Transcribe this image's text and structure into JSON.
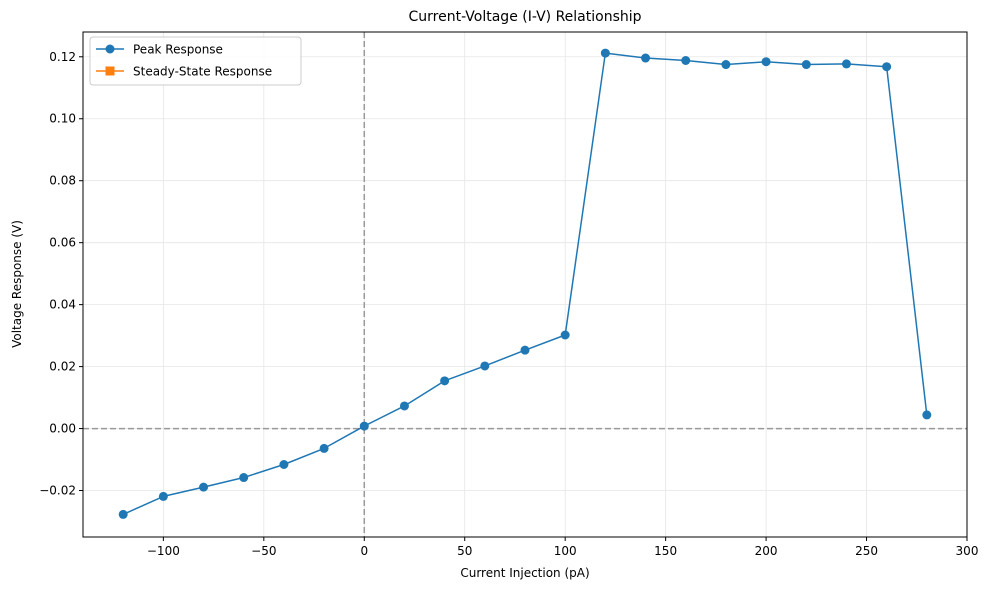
{
  "chart_data": {
    "type": "line",
    "title": "Current-Voltage (I-V) Relationship",
    "xlabel": "Current Injection (pA)",
    "ylabel": "Voltage Response (V)",
    "xlim": [
      -140,
      300
    ],
    "ylim": [
      -0.035,
      0.128
    ],
    "xticks": [
      -100,
      -50,
      0,
      50,
      100,
      150,
      200,
      250,
      300
    ],
    "xtick_labels": [
      "−100",
      "−50",
      "0",
      "50",
      "100",
      "150",
      "200",
      "250",
      "300"
    ],
    "yticks": [
      -0.02,
      0.0,
      0.02,
      0.04,
      0.06,
      0.08,
      0.1,
      0.12
    ],
    "ytick_labels": [
      "−0.02",
      "0.00",
      "0.02",
      "0.04",
      "0.06",
      "0.08",
      "0.10",
      "0.12"
    ],
    "grid": true,
    "legend_position": "top-left",
    "reference_lines": {
      "x": 0,
      "y": 0,
      "style": "dashed",
      "color": "#999999"
    },
    "series": [
      {
        "name": "Peak Response",
        "color": "#1f77b4",
        "marker": "circle",
        "x": [
          -120,
          -100,
          -80,
          -60,
          -40,
          -20,
          0,
          20,
          40,
          60,
          80,
          100,
          120,
          140,
          160,
          180,
          200,
          220,
          240,
          260,
          280
        ],
        "y": [
          -0.0277,
          -0.0219,
          -0.0189,
          -0.0158,
          -0.0116,
          -0.0064,
          0.0008,
          0.0073,
          0.0154,
          0.0202,
          0.0253,
          0.0302,
          0.1212,
          0.1196,
          0.1188,
          0.1175,
          0.1184,
          0.1175,
          0.1177,
          0.1168,
          0.0044
        ]
      },
      {
        "name": "Steady-State Response",
        "color": "#ff7f0e",
        "marker": "square",
        "x": [],
        "y": []
      }
    ]
  }
}
